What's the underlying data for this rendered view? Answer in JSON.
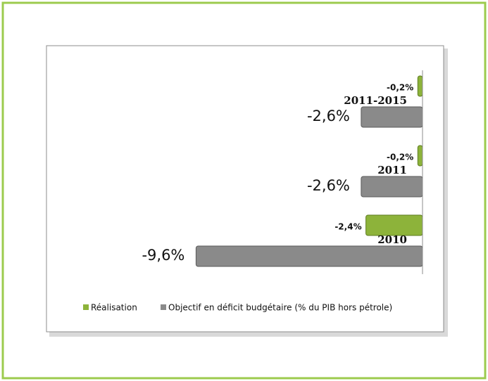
{
  "chart_data": {
    "type": "bar",
    "orientation": "horizontal",
    "categories": [
      "2011-2015",
      "2011",
      "2010"
    ],
    "series": [
      {
        "name": "Réalisation",
        "color": "#8db33a",
        "values": [
          -0.2,
          -0.2,
          -2.4
        ],
        "value_labels": [
          "-0,2%",
          "-0,2%",
          "-2,4%"
        ]
      },
      {
        "name": "Objectif en déficit budgétaire (% du PIB hors pétrole)",
        "color": "#8a8a8a",
        "values": [
          -2.6,
          -2.6,
          -9.6
        ],
        "value_labels": [
          "-2,6%",
          "-2,6%",
          "-9,6%"
        ]
      }
    ],
    "xlim": [
      -10,
      0
    ]
  }
}
